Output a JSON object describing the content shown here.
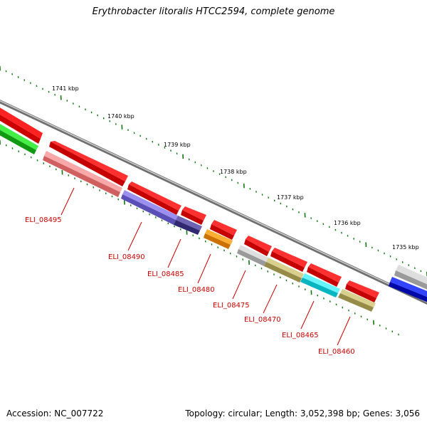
{
  "title": "Erythrobacter litoralis HTCC2594, complete genome",
  "footer": {
    "accession": "Accession: NC_007722",
    "summary": "Topology: circular; Length: 3,052,398 bp; Genes: 3,056"
  },
  "ruler": {
    "ticks": [
      {
        "label": "1741 kbp"
      },
      {
        "label": "1740 kbp"
      },
      {
        "label": "1739 kbp"
      },
      {
        "label": "1738 kbp"
      },
      {
        "label": "1737 kbp"
      },
      {
        "label": "1736 kbp"
      },
      {
        "label": "1735 kbp"
      }
    ]
  },
  "gene_labels": [
    {
      "label": "ELI_08495"
    },
    {
      "label": "ELI_08490"
    },
    {
      "label": "ELI_08485"
    },
    {
      "label": "ELI_08480"
    },
    {
      "label": "ELI_08475"
    },
    {
      "label": "ELI_08470"
    },
    {
      "label": "ELI_08465"
    },
    {
      "label": "ELI_08460"
    }
  ],
  "colors": {
    "cds": "#ff0000",
    "label_text": "#cc0000",
    "ruler_tick": "#117711",
    "backbone": "#888888",
    "pink": "#f08a8a",
    "purple": "#7b6fd6",
    "dark_purple": "#4c4090",
    "orange": "#ff9200",
    "gray": "#bdbdbd",
    "khaki": "#c2b86d",
    "cyan": "#14e8f5",
    "blue": "#0c1bea",
    "green": "#22cc22"
  }
}
